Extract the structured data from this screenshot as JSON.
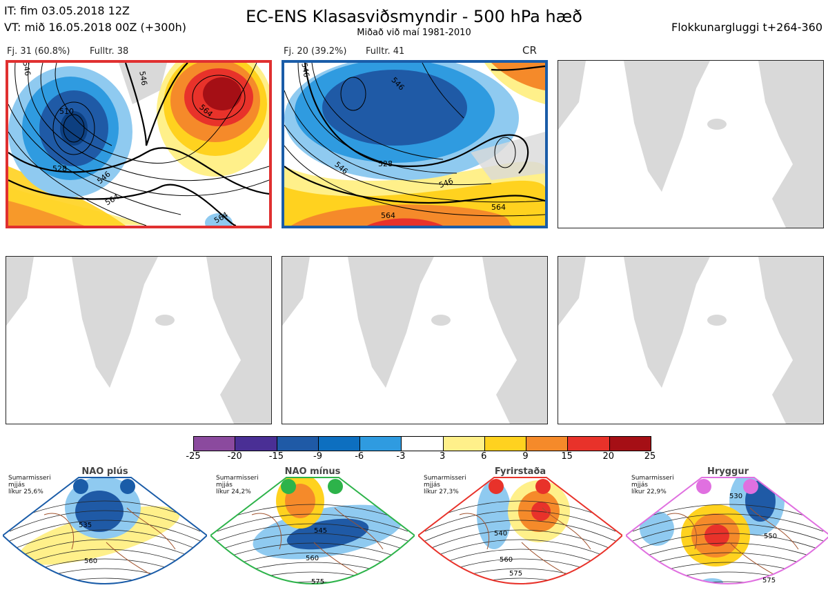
{
  "header": {
    "it_line": "IT: fim 03.05.2018 12Z",
    "vt_line": "VT: mið 16.05.2018 00Z  (+300h)",
    "title": "EC-ENS Klasasviðsmyndir - 500 hPa hæð",
    "subtitle": "Miðað við maí 1981-2010",
    "window": "Flokkunargluggi t+264-360"
  },
  "clusters": [
    {
      "label": "Fj. 31 (60.8%)",
      "rep": "Fulltr. 38",
      "border_color": "#e03030",
      "regime_code": "",
      "contours": [
        "510",
        "528",
        "546",
        "564",
        "546",
        "564",
        "564",
        "546"
      ]
    },
    {
      "label": "Fj. 20 (39.2%)",
      "rep": "Fulltr. 41",
      "border_color": "#1a5ca8",
      "regime_code": "CR",
      "contours": [
        "546",
        "546",
        "546",
        "528",
        "546",
        "564",
        "564"
      ]
    }
  ],
  "colorbar": {
    "ticks": [
      "-25",
      "-20",
      "-15",
      "-9",
      "-6",
      "-3",
      "3",
      "6",
      "9",
      "15",
      "20",
      "25"
    ],
    "colors": [
      "#8b4a9e",
      "#4a2f95",
      "#1f5aa6",
      "#0d6fc0",
      "#2f9be0",
      "#8fcaf0",
      "#ffffff",
      "#fff08a",
      "#ffd21f",
      "#f58a2a",
      "#e8322a",
      "#a50f15"
    ]
  },
  "regimes": [
    {
      "name": "NAO plús",
      "season": "Sumarmisseri",
      "mean": "mjjás",
      "prob": "líkur 25,6%",
      "color": "#1a5ca8",
      "contours": [
        "535",
        "560"
      ]
    },
    {
      "name": "NAO mínus",
      "season": "Sumarmisseri",
      "mean": "mjjás",
      "prob": "líkur 24,2%",
      "color": "#2db34a",
      "contours": [
        "545",
        "560",
        "575"
      ]
    },
    {
      "name": "Fyrirstaða",
      "season": "Sumarmisseri",
      "mean": "mjjás",
      "prob": "líkur 27,3%",
      "color": "#e8322a",
      "contours": [
        "540",
        "560",
        "575"
      ]
    },
    {
      "name": "Hryggur",
      "season": "Sumarmisseri",
      "mean": "mjjás",
      "prob": "líkur 22,9%",
      "color": "#e070e0",
      "contours": [
        "530",
        "550",
        "575"
      ]
    }
  ]
}
